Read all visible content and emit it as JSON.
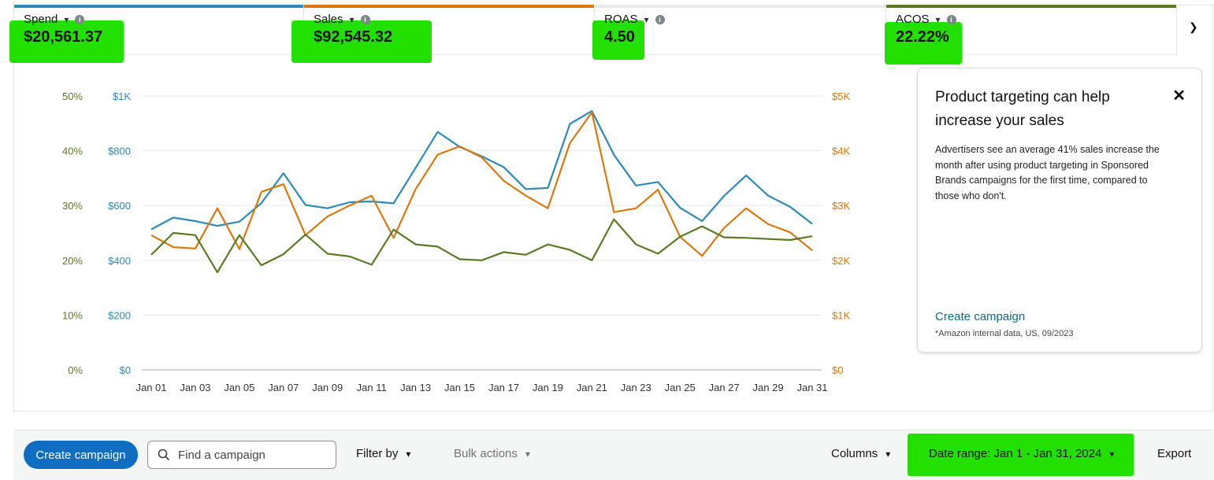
{
  "metrics": [
    {
      "label": "Spend",
      "value": "$20,561.37",
      "color": "#2e8ab8"
    },
    {
      "label": "Sales",
      "value": "$92,545.32",
      "color": "#d9790f"
    },
    {
      "label": "ROAS",
      "value": "4.50",
      "color": "#e9e9e9"
    },
    {
      "label": "ACOS",
      "value": "22.22%",
      "color": "#5b7a25"
    }
  ],
  "highlight_color": "#22e000",
  "chart_data": {
    "type": "line",
    "x": [
      "Jan 01",
      "Jan 02",
      "Jan 03",
      "Jan 04",
      "Jan 05",
      "Jan 06",
      "Jan 07",
      "Jan 08",
      "Jan 09",
      "Jan 10",
      "Jan 11",
      "Jan 12",
      "Jan 13",
      "Jan 14",
      "Jan 15",
      "Jan 16",
      "Jan 17",
      "Jan 18",
      "Jan 19",
      "Jan 20",
      "Jan 21",
      "Jan 22",
      "Jan 23",
      "Jan 24",
      "Jan 25",
      "Jan 26",
      "Jan 27",
      "Jan 28",
      "Jan 29",
      "Jan 30",
      "Jan 31"
    ],
    "x_tick_labels": [
      "Jan 01",
      "Jan 03",
      "Jan 05",
      "Jan 07",
      "Jan 09",
      "Jan 11",
      "Jan 13",
      "Jan 15",
      "Jan 17",
      "Jan 19",
      "Jan 21",
      "Jan 23",
      "Jan 25",
      "Jan 27",
      "Jan 29",
      "Jan 31"
    ],
    "left_pct_ticks": [
      "0%",
      "10%",
      "20%",
      "30%",
      "40%",
      "50%"
    ],
    "left_dollar_ticks": [
      "$0",
      "$200",
      "$400",
      "$600",
      "$800",
      "$1K"
    ],
    "right_ticks": [
      "$0",
      "$1K",
      "$2K",
      "$3K",
      "$4K",
      "$5K"
    ],
    "axis_colors": {
      "pct": "#5b7a25",
      "dollar": "#2e8ab8",
      "right": "#d9790f"
    },
    "series": [
      {
        "name": "Spend",
        "axis": "dollar",
        "ylim": [
          0,
          1000
        ],
        "color": "#2e8ab8",
        "values": [
          513,
          556,
          543,
          526,
          541,
          609,
          718,
          602,
          590,
          612,
          615,
          608,
          738,
          869,
          814,
          780,
          740,
          660,
          664,
          898,
          945,
          785,
          673,
          686,
          592,
          543,
          635,
          710,
          636,
          595,
          533
        ]
      },
      {
        "name": "Sales",
        "axis": "right",
        "ylim": [
          0,
          5000
        ],
        "color": "#d9790f",
        "values": [
          2460,
          2240,
          2215,
          2950,
          2205,
          3250,
          3390,
          2460,
          2800,
          3000,
          3180,
          2410,
          3300,
          3930,
          4080,
          3880,
          3450,
          3180,
          2950,
          4140,
          4700,
          2880,
          2950,
          3290,
          2430,
          2080,
          2590,
          2950,
          2660,
          2510,
          2180
        ]
      },
      {
        "name": "ACOS",
        "axis": "pct",
        "ylim": [
          0,
          50
        ],
        "color": "#5b7a25",
        "values": [
          21.0,
          25.0,
          24.6,
          17.8,
          24.6,
          19.1,
          21.1,
          24.7,
          21.2,
          20.7,
          19.2,
          25.6,
          22.9,
          22.5,
          20.2,
          20.0,
          21.5,
          21.0,
          22.9,
          21.9,
          20.0,
          27.5,
          22.9,
          21.2,
          24.3,
          26.2,
          24.2,
          24.1,
          23.9,
          23.7,
          24.4
        ]
      }
    ]
  },
  "card": {
    "title": "Product targeting can help increase your sales",
    "close_glyph": "✕",
    "description": "Advertisers see an average 41% sales increase the month after using product targeting in Sponsored Brands campaigns for the first time, compared to those who don't.",
    "cta": "Create campaign",
    "footnote": "*Amazon internal data, US, 09/2023"
  },
  "toolbar": {
    "create_label": "Create campaign",
    "search_placeholder": "Find a campaign",
    "filter_label": "Filter by",
    "bulk_label": "Bulk actions",
    "columns_label": "Columns",
    "date_range_label": "Date range: Jan 1 - Jan 31, 2024",
    "export_label": "Export"
  },
  "icons": {
    "chevron": "⌄",
    "info": "i",
    "search": "search-icon"
  }
}
